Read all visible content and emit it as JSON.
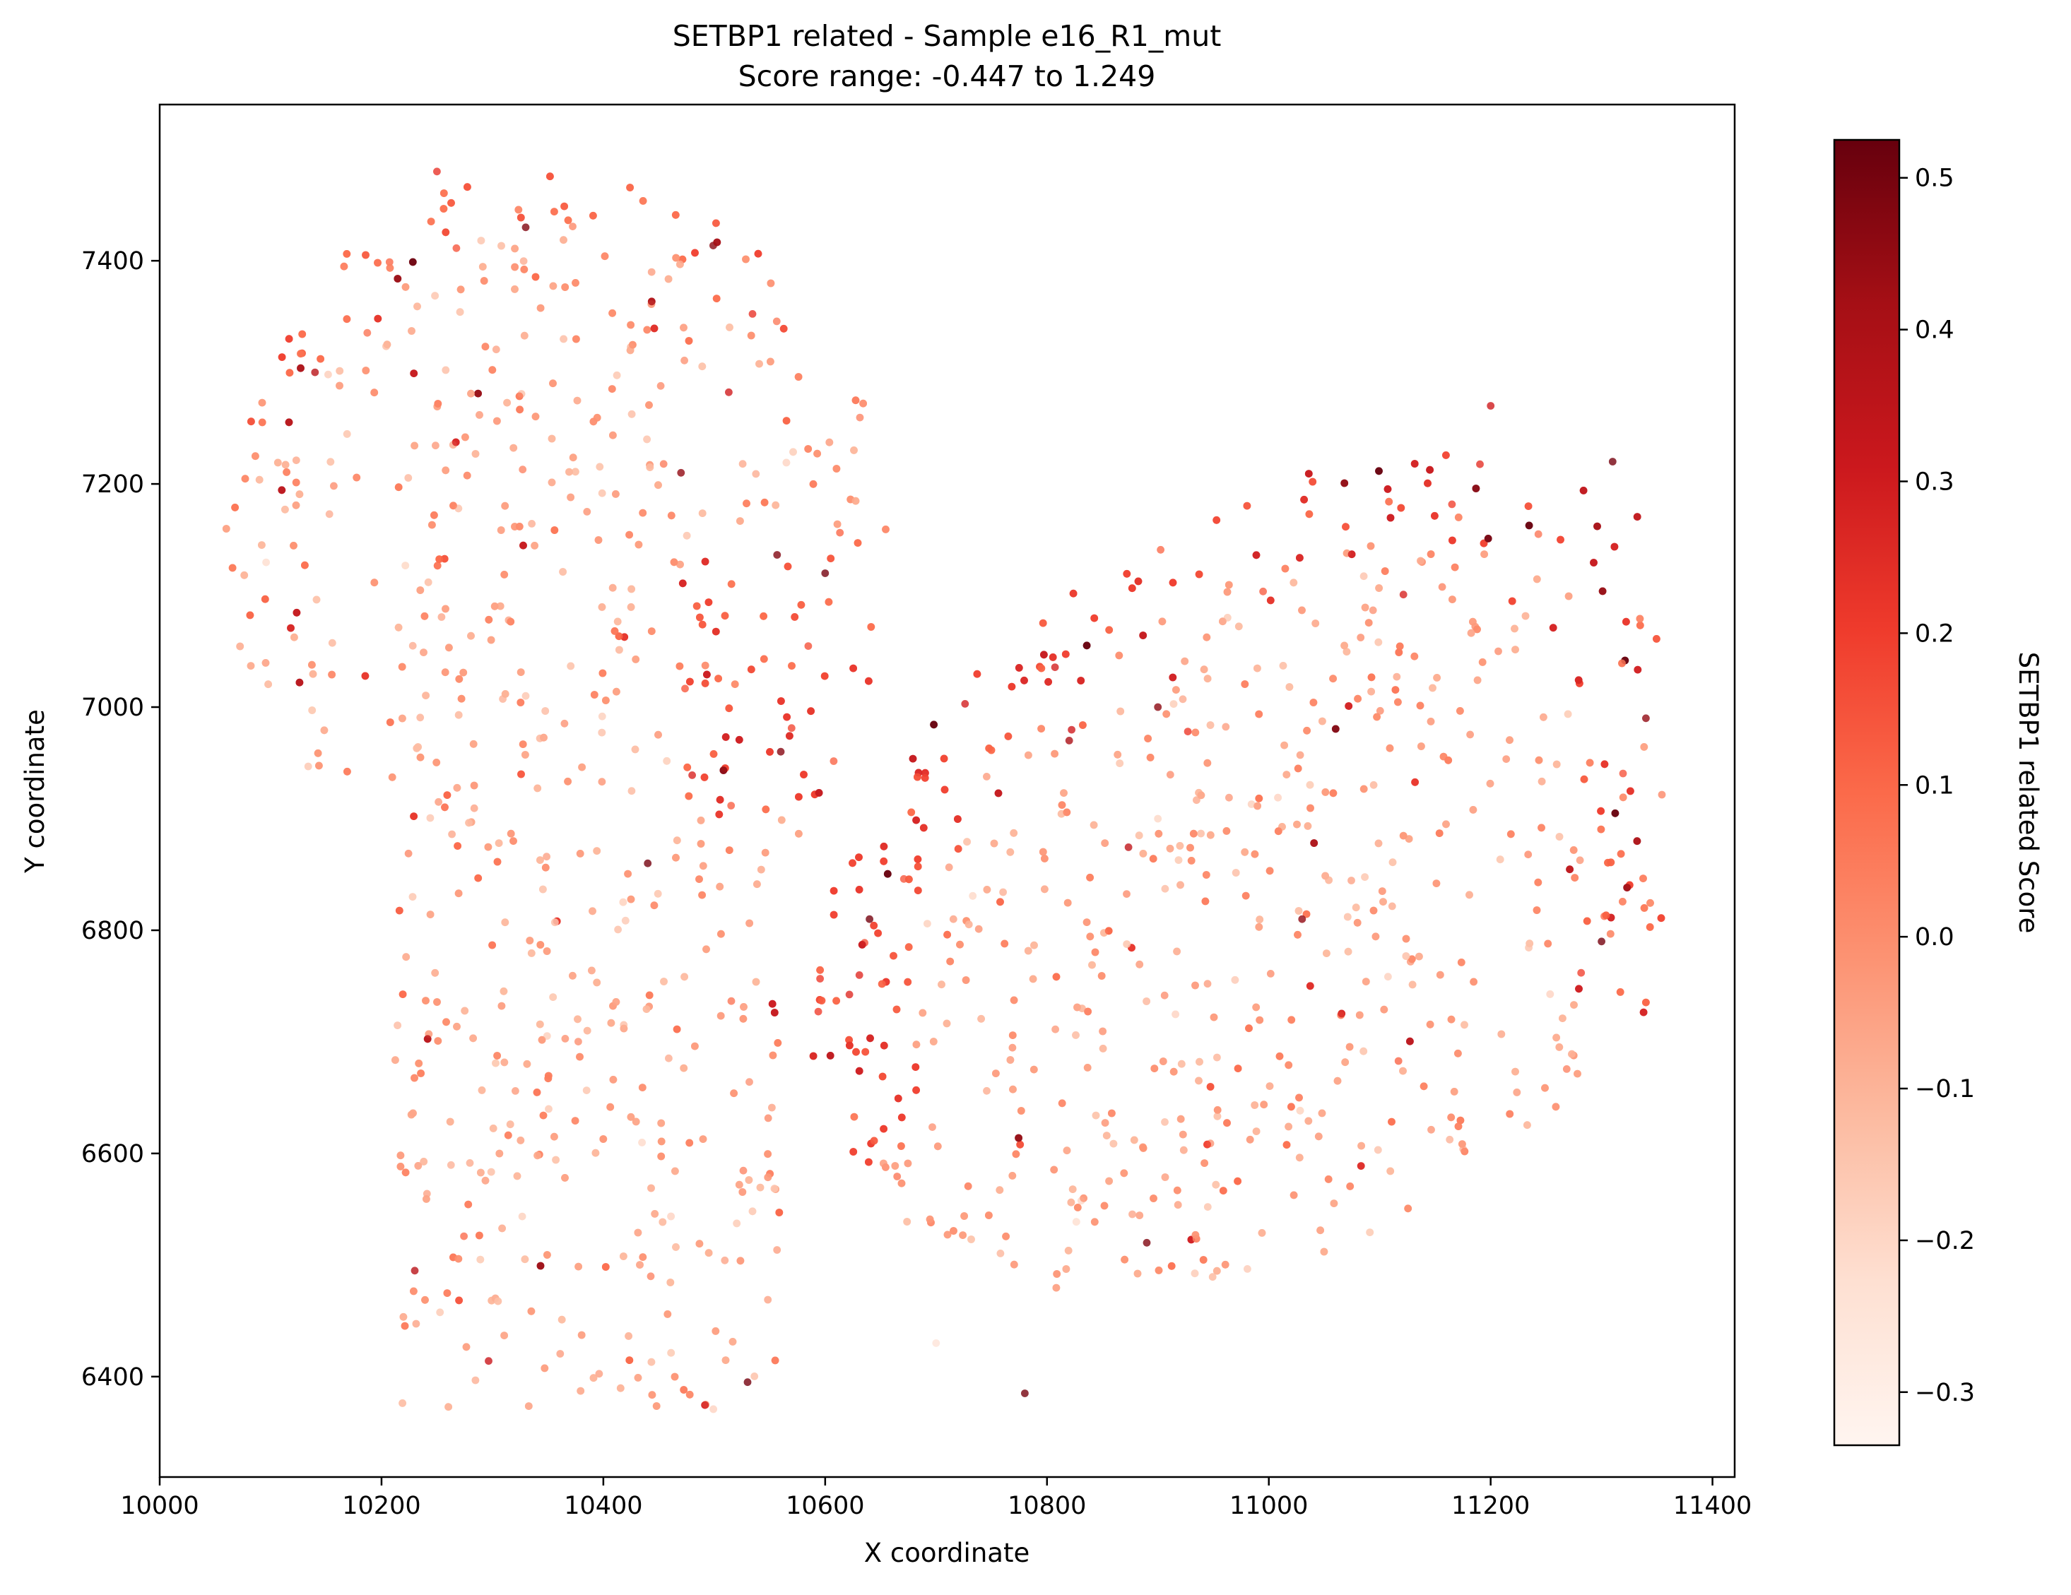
{
  "chart_data": {
    "type": "scatter",
    "title": "SETBP1 related - Sample e16_R1_mut",
    "subtitle": "Score range: -0.447 to 1.249",
    "xlabel": "X coordinate",
    "ylabel": "Y coordinate",
    "xlim": [
      10000,
      11420
    ],
    "ylim": [
      6310,
      7540
    ],
    "x_ticks": [
      10000,
      10200,
      10400,
      10600,
      10800,
      11000,
      11200,
      11400
    ],
    "y_ticks": [
      6400,
      6600,
      6800,
      7000,
      7200,
      7400
    ],
    "grid": false,
    "colorbar": {
      "label": "SETBP1 related Score",
      "colormap": "Reds",
      "range": [
        -0.335,
        0.525
      ],
      "ticks": [
        -0.3,
        -0.2,
        -0.1,
        0.0,
        0.1,
        0.2,
        0.3,
        0.4,
        0.5
      ],
      "tick_labels": [
        "−0.3",
        "−0.2",
        "−0.1",
        "0.0",
        "0.1",
        "0.2",
        "0.3",
        "0.4",
        "0.5"
      ]
    },
    "colors": {
      "low": "#fff5f0",
      "mid": "#fb6a4a",
      "high": "#67000d",
      "point_alpha": 0.8
    },
    "point_count_approx": 2400,
    "regions": [
      {
        "name": "left-lobe-upper",
        "x_range": [
          10060,
          10660
        ],
        "y_range": [
          6880,
          7485
        ],
        "score_mean": -0.05
      },
      {
        "name": "left-lobe-lower",
        "x_range": [
          10200,
          10560
        ],
        "y_range": [
          6360,
          6900
        ],
        "score_mean": 0.0
      },
      {
        "name": "right-lobe",
        "x_range": [
          10640,
          11355
        ],
        "y_range": [
          6370,
          7285
        ],
        "score_mean": -0.02
      }
    ],
    "sample_points": [
      {
        "x": 10250,
        "y": 7480,
        "score": 0.22
      },
      {
        "x": 10330,
        "y": 7430,
        "score": 0.48
      },
      {
        "x": 10140,
        "y": 7300,
        "score": 0.36
      },
      {
        "x": 10470,
        "y": 7210,
        "score": 0.45
      },
      {
        "x": 10600,
        "y": 7120,
        "score": 0.5
      },
      {
        "x": 10560,
        "y": 6960,
        "score": 0.47
      },
      {
        "x": 10440,
        "y": 6860,
        "score": 0.5
      },
      {
        "x": 10640,
        "y": 6810,
        "score": 0.5
      },
      {
        "x": 10820,
        "y": 6970,
        "score": 0.4
      },
      {
        "x": 10900,
        "y": 7000,
        "score": 0.46
      },
      {
        "x": 11030,
        "y": 6810,
        "score": 0.45
      },
      {
        "x": 11200,
        "y": 7270,
        "score": 0.3
      },
      {
        "x": 11310,
        "y": 7220,
        "score": 0.5
      },
      {
        "x": 11340,
        "y": 6990,
        "score": 0.45
      },
      {
        "x": 11300,
        "y": 6790,
        "score": 0.5
      },
      {
        "x": 10890,
        "y": 6520,
        "score": 0.48
      },
      {
        "x": 10780,
        "y": 6385,
        "score": 0.5
      },
      {
        "x": 10530,
        "y": 6395,
        "score": 0.5
      },
      {
        "x": 10230,
        "y": 6495,
        "score": 0.36
      },
      {
        "x": 10700,
        "y": 6430,
        "score": -0.25
      },
      {
        "x": 10900,
        "y": 6900,
        "score": -0.2
      },
      {
        "x": 10330,
        "y": 7010,
        "score": -0.15
      }
    ]
  }
}
